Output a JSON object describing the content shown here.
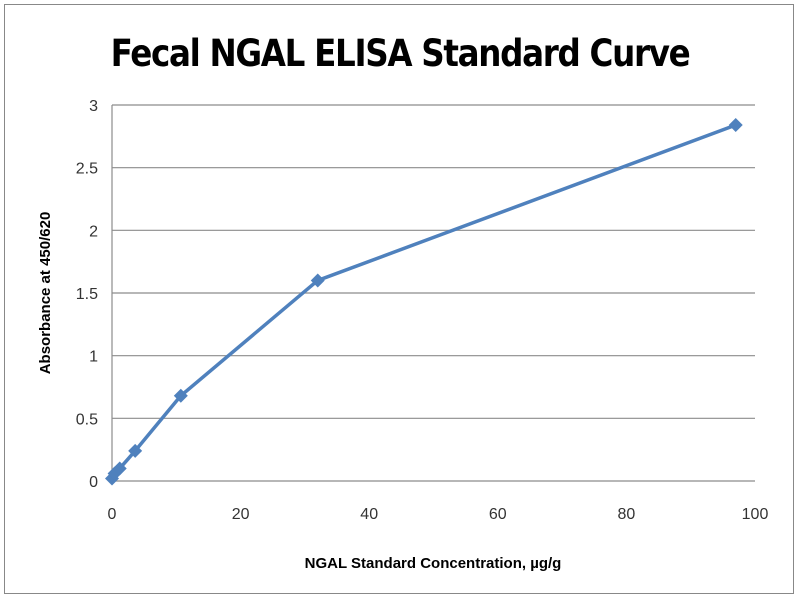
{
  "chart_data": {
    "type": "line",
    "title": "Fecal NGAL ELISA Standard Curve",
    "xlabel": "NGAL Standard Concentration, µg/g",
    "ylabel": "Absorbance at 450/620",
    "xlim": [
      0,
      100
    ],
    "ylim": [
      0,
      3
    ],
    "xticks": [
      "0",
      "20",
      "40",
      "60",
      "80",
      "100"
    ],
    "yticks": [
      "0",
      "0.5",
      "1",
      "1.5",
      "2",
      "2.5",
      "3"
    ],
    "grid": "horizontal",
    "marker": "diamond",
    "color": "#4f81bd",
    "x": [
      0,
      0.4,
      1.2,
      3.6,
      10.7,
      32,
      97
    ],
    "y": [
      0.02,
      0.06,
      0.1,
      0.24,
      0.68,
      1.6,
      2.84
    ]
  }
}
